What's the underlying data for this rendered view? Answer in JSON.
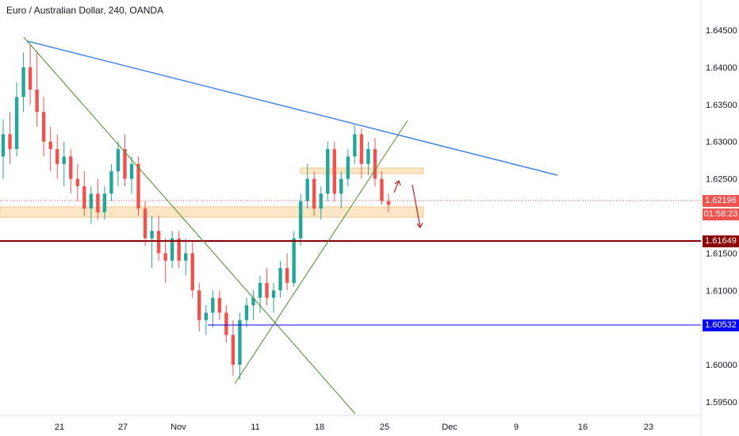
{
  "header": {
    "title": "Euro / Australian Dollar, 240, OANDA"
  },
  "price_axis": {
    "ticks": [
      "1.64500",
      "1.64000",
      "1.63500",
      "1.63000",
      "1.62500",
      "1.61500",
      "1.61000",
      "1.60500",
      "1.60000",
      "1.59500"
    ],
    "tick_values": [
      1.645,
      1.64,
      1.635,
      1.63,
      1.625,
      1.615,
      1.61,
      1.605,
      1.6,
      1.595
    ]
  },
  "time_axis": {
    "ticks": [
      "21",
      "27",
      "Nov",
      "11",
      "18",
      "25",
      "Dec",
      "9",
      "16",
      "23"
    ]
  },
  "labels": {
    "current_price": "1.62196",
    "countdown": "01:58:23",
    "support_level": "1.61649",
    "low_level": "1.60532"
  },
  "colors": {
    "up": "#26a69a",
    "down": "#ef5350",
    "current": "#ef5350",
    "support": "#8b0000",
    "low": "#0000ff",
    "trendline_blue": "#4a86e8",
    "trendline_green": "#4c8c2b",
    "zone_fill": "#fbe7c6",
    "zone_border": "#f0c98a",
    "arrow": "#b22222"
  },
  "chart_data": {
    "type": "candlestick",
    "title": "Euro / Australian Dollar, 240, OANDA",
    "price_range": [
      1.5935,
      1.6475
    ],
    "horizontal_lines": [
      1.62196,
      1.61649,
      1.60532
    ],
    "candles": [
      [
        1.628,
        1.633,
        1.625,
        1.631
      ],
      [
        1.631,
        1.634,
        1.627,
        1.629
      ],
      [
        1.629,
        1.638,
        1.628,
        1.636
      ],
      [
        1.636,
        1.642,
        1.634,
        1.64
      ],
      [
        1.64,
        1.6432,
        1.635,
        1.637
      ],
      [
        1.637,
        1.642,
        1.632,
        1.634
      ],
      [
        1.634,
        1.636,
        1.628,
        1.63
      ],
      [
        1.63,
        1.632,
        1.626,
        1.629
      ],
      [
        1.629,
        1.631,
        1.625,
        1.627
      ],
      [
        1.627,
        1.63,
        1.624,
        1.628
      ],
      [
        1.628,
        1.629,
        1.623,
        1.625
      ],
      [
        1.625,
        1.627,
        1.622,
        1.624
      ],
      [
        1.624,
        1.626,
        1.62,
        1.621
      ],
      [
        1.621,
        1.624,
        1.619,
        1.623
      ],
      [
        1.623,
        1.625,
        1.6195,
        1.6205
      ],
      [
        1.6205,
        1.624,
        1.6195,
        1.623
      ],
      [
        1.623,
        1.627,
        1.622,
        1.626
      ],
      [
        1.626,
        1.63,
        1.624,
        1.629
      ],
      [
        1.629,
        1.631,
        1.624,
        1.625
      ],
      [
        1.625,
        1.628,
        1.623,
        1.627
      ],
      [
        1.627,
        1.628,
        1.62,
        1.621
      ],
      [
        1.621,
        1.622,
        1.616,
        1.617
      ],
      [
        1.617,
        1.62,
        1.613,
        1.618
      ],
      [
        1.618,
        1.62,
        1.614,
        1.615
      ],
      [
        1.615,
        1.617,
        1.611,
        1.614
      ],
      [
        1.614,
        1.618,
        1.613,
        1.617
      ],
      [
        1.617,
        1.618,
        1.613,
        1.614
      ],
      [
        1.614,
        1.617,
        1.612,
        1.615
      ],
      [
        1.615,
        1.6165,
        1.609,
        1.61
      ],
      [
        1.61,
        1.611,
        1.6045,
        1.606
      ],
      [
        1.606,
        1.608,
        1.604,
        1.607
      ],
      [
        1.607,
        1.61,
        1.605,
        1.609
      ],
      [
        1.609,
        1.61,
        1.606,
        1.607
      ],
      [
        1.607,
        1.608,
        1.603,
        1.604
      ],
      [
        1.604,
        1.606,
        1.5985,
        1.6
      ],
      [
        1.6,
        1.607,
        1.598,
        1.606
      ],
      [
        1.606,
        1.609,
        1.605,
        1.608
      ],
      [
        1.608,
        1.61,
        1.606,
        1.609
      ],
      [
        1.609,
        1.612,
        1.607,
        1.611
      ],
      [
        1.611,
        1.613,
        1.608,
        1.609
      ],
      [
        1.609,
        1.611,
        1.607,
        1.61
      ],
      [
        1.61,
        1.614,
        1.609,
        1.613
      ],
      [
        1.613,
        1.615,
        1.61,
        1.611
      ],
      [
        1.611,
        1.618,
        1.6105,
        1.617
      ],
      [
        1.617,
        1.623,
        1.616,
        1.622
      ],
      [
        1.622,
        1.627,
        1.621,
        1.625
      ],
      [
        1.625,
        1.626,
        1.62,
        1.621
      ],
      [
        1.621,
        1.624,
        1.6195,
        1.623
      ],
      [
        1.623,
        1.63,
        1.622,
        1.629
      ],
      [
        1.629,
        1.63,
        1.622,
        1.623
      ],
      [
        1.623,
        1.626,
        1.621,
        1.625
      ],
      [
        1.625,
        1.629,
        1.624,
        1.628
      ],
      [
        1.628,
        1.6322,
        1.627,
        1.631
      ],
      [
        1.631,
        1.6318,
        1.625,
        1.627
      ],
      [
        1.627,
        1.63,
        1.6255,
        1.629
      ],
      [
        1.629,
        1.6305,
        1.624,
        1.625
      ],
      [
        1.625,
        1.626,
        1.6215,
        1.622
      ],
      [
        1.622,
        1.623,
        1.6205,
        1.6215
      ]
    ]
  }
}
